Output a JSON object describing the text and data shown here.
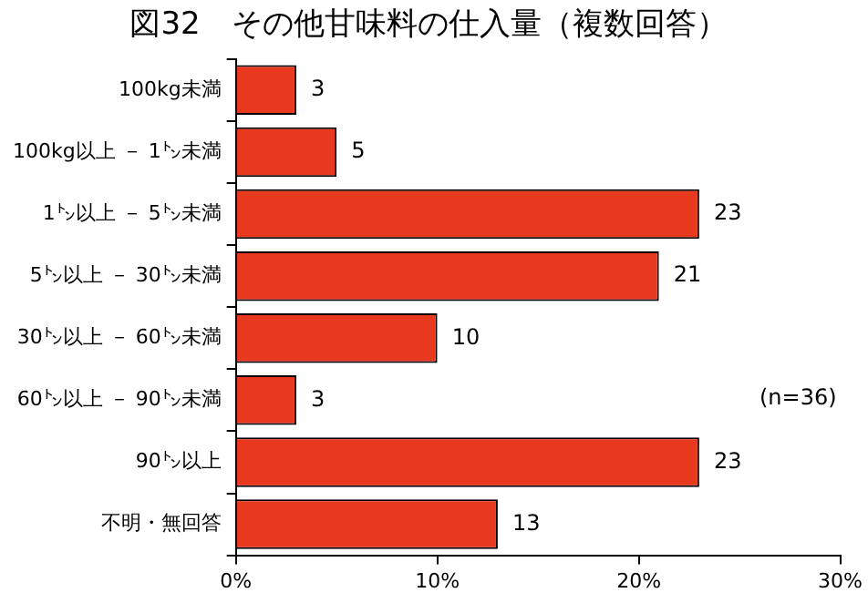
{
  "chart_data": {
    "type": "bar",
    "orientation": "horizontal",
    "title": "図32　その他甘味料の仕入量（複数回答）",
    "categories": [
      "100kg未満",
      "100kg以上 － 1㌧未満",
      "1㌧以上 － 5㌧未満",
      "5㌧以上 － 30㌧未満",
      "30㌧以上 － 60㌧未満",
      "60㌧以上 － 90㌧未満",
      "90㌧以上",
      "不明・無回答"
    ],
    "values": [
      3,
      5,
      23,
      21,
      10,
      3,
      23,
      13
    ],
    "color": "#e8391f",
    "data_labels": true,
    "xlim": [
      0,
      30
    ],
    "xticks": [
      {
        "value": 0,
        "label": "0%"
      },
      {
        "value": 10,
        "label": "10%"
      },
      {
        "value": 20,
        "label": "20%"
      },
      {
        "value": 30,
        "label": "30%"
      }
    ],
    "grid": false,
    "legend": false,
    "annotations": [
      "(n=36)"
    ]
  }
}
